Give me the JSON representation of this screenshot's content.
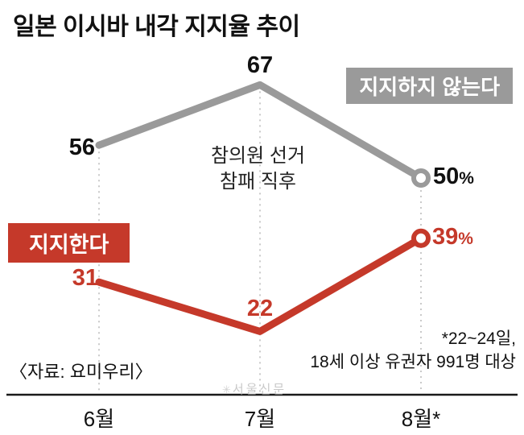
{
  "title": "일본 이시바 내각 지지율 추이",
  "legend": {
    "not_support": "지지하지 않는다",
    "support": "지지한다"
  },
  "annotation": {
    "line1": "참의원 선거",
    "line2": "참패 직후"
  },
  "source": "〈자료: 요미우리〉",
  "footnote": {
    "line1": "*22~24일,",
    "line2": "18세 이상 유권자 991명 대상"
  },
  "watermark": {
    "mark": "✳",
    "text": "서울신문"
  },
  "percent_sign": "%",
  "colors": {
    "support_red": "#c5392a",
    "not_support_gray": "#9a9a9a"
  },
  "months": [
    "6월",
    "7월",
    "8월*"
  ],
  "chart_data": {
    "type": "line",
    "title": "일본 이시바 내각 지지율 추이",
    "categories": [
      "6월",
      "7월",
      "8월*"
    ],
    "series": [
      {
        "name": "지지하지 않는다",
        "color": "#9a9a9a",
        "values": [
          56,
          67,
          50
        ],
        "end_label": "50%"
      },
      {
        "name": "지지한다",
        "color": "#c5392a",
        "values": [
          31,
          22,
          39
        ],
        "end_label": "39%"
      }
    ],
    "ylim": [
      0,
      80
    ],
    "grid": "dotted-vertical-guides",
    "legend_position": "inline-boxes",
    "annotations": [
      "참의원 선거 참패 직후",
      "*22~24일, 18세 이상 유권자 991명 대상",
      "〈자료: 요미우리〉"
    ]
  }
}
